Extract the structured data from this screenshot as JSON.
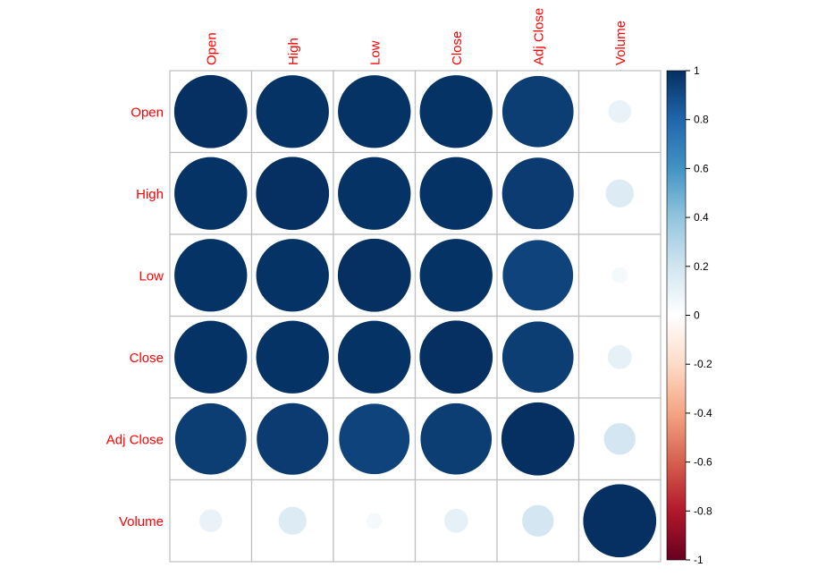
{
  "chart_data": {
    "type": "heatmap",
    "method": "circle",
    "labels": [
      "Open",
      "High",
      "Low",
      "Close",
      "Adj Close",
      "Volume"
    ],
    "matrix": [
      [
        1.0,
        0.99,
        0.99,
        0.99,
        0.95,
        0.1
      ],
      [
        0.99,
        1.0,
        0.99,
        0.99,
        0.96,
        0.15
      ],
      [
        0.99,
        0.99,
        1.0,
        0.99,
        0.93,
        0.05
      ],
      [
        0.99,
        0.99,
        0.99,
        1.0,
        0.95,
        0.11
      ],
      [
        0.95,
        0.96,
        0.93,
        0.95,
        1.0,
        0.19
      ],
      [
        0.1,
        0.15,
        0.05,
        0.11,
        0.19,
        1.0
      ]
    ],
    "colorbar": {
      "range": [
        -1,
        1
      ],
      "ticks": [
        "1",
        "0.8",
        "0.6",
        "0.4",
        "0.2",
        "0",
        "-0.2",
        "-0.4",
        "-0.6",
        "-0.8",
        "-1"
      ],
      "colors": [
        "#67001F",
        "#B2182B",
        "#D6604D",
        "#F4A582",
        "#FDDBC7",
        "#FFFFFF",
        "#D1E5F0",
        "#92C5DE",
        "#4393C3",
        "#2166AC",
        "#053061"
      ]
    },
    "label_color": "#FF0000",
    "grid": true,
    "legend": "right"
  }
}
